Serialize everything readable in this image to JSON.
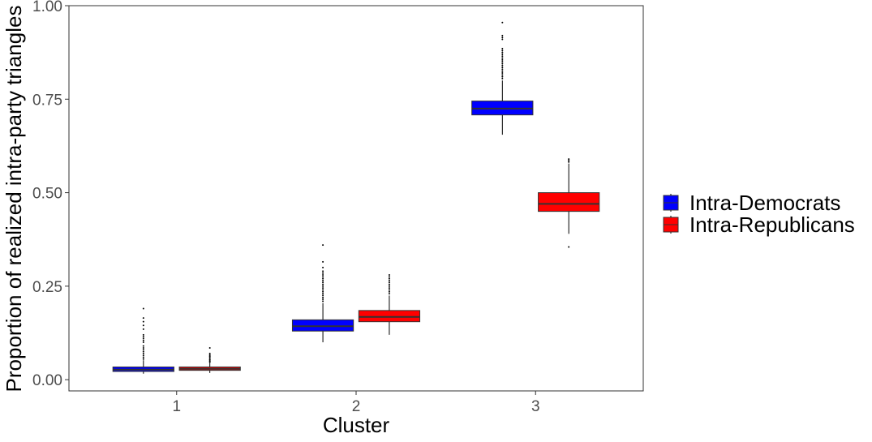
{
  "chart_data": {
    "type": "boxplot",
    "xlabel": "Cluster",
    "ylabel": "Proportion of realized intra-party triangles",
    "categories": [
      "1",
      "2",
      "3"
    ],
    "ylim": [
      -0.03,
      1.0
    ],
    "yticks": [
      0.0,
      0.25,
      0.5,
      0.75,
      1.0
    ],
    "ytick_labels": [
      "0.00",
      "0.25",
      "0.50",
      "0.75",
      "1.00"
    ],
    "grid": false,
    "legend_position": "right",
    "series": [
      {
        "name": "Intra-Democrats",
        "color": "#0000ff",
        "boxes": [
          {
            "category": "1",
            "whisker_low": 0.016,
            "q1": 0.022,
            "median": 0.027,
            "q3": 0.034,
            "whisker_high": 0.052,
            "outliers": [
              0.055,
              0.06,
              0.065,
              0.07,
              0.075,
              0.08,
              0.085,
              0.09,
              0.1,
              0.105,
              0.11,
              0.115,
              0.12,
              0.135,
              0.145,
              0.155,
              0.165,
              0.19
            ]
          },
          {
            "category": "2",
            "whisker_low": 0.1,
            "q1": 0.13,
            "median": 0.143,
            "q3": 0.16,
            "whisker_high": 0.205,
            "outliers": [
              0.21,
              0.215,
              0.22,
              0.225,
              0.23,
              0.235,
              0.24,
              0.245,
              0.25,
              0.255,
              0.26,
              0.265,
              0.27,
              0.275,
              0.28,
              0.285,
              0.29,
              0.3,
              0.315,
              0.36
            ]
          },
          {
            "category": "3",
            "whisker_low": 0.655,
            "q1": 0.708,
            "median": 0.725,
            "q3": 0.745,
            "whisker_high": 0.8,
            "outliers": [
              0.805,
              0.81,
              0.815,
              0.82,
              0.825,
              0.83,
              0.835,
              0.84,
              0.845,
              0.85,
              0.855,
              0.86,
              0.865,
              0.87,
              0.875,
              0.88,
              0.885,
              0.91,
              0.915,
              0.92,
              0.955
            ]
          }
        ]
      },
      {
        "name": "Intra-Republicans",
        "color": "#ff0000",
        "boxes": [
          {
            "category": "1",
            "whisker_low": 0.018,
            "q1": 0.025,
            "median": 0.029,
            "q3": 0.034,
            "whisker_high": 0.045,
            "outliers": [
              0.047,
              0.05,
              0.053,
              0.056,
              0.06,
              0.063,
              0.066,
              0.07,
              0.085
            ]
          },
          {
            "category": "2",
            "whisker_low": 0.12,
            "q1": 0.155,
            "median": 0.168,
            "q3": 0.185,
            "whisker_high": 0.225,
            "outliers": [
              0.23,
              0.235,
              0.24,
              0.245,
              0.25,
              0.255,
              0.26,
              0.265,
              0.27,
              0.275,
              0.28
            ]
          },
          {
            "category": "3",
            "whisker_low": 0.39,
            "q1": 0.45,
            "median": 0.47,
            "q3": 0.5,
            "whisker_high": 0.578,
            "outliers": [
              0.582,
              0.586,
              0.59,
              0.355
            ]
          }
        ]
      }
    ]
  }
}
